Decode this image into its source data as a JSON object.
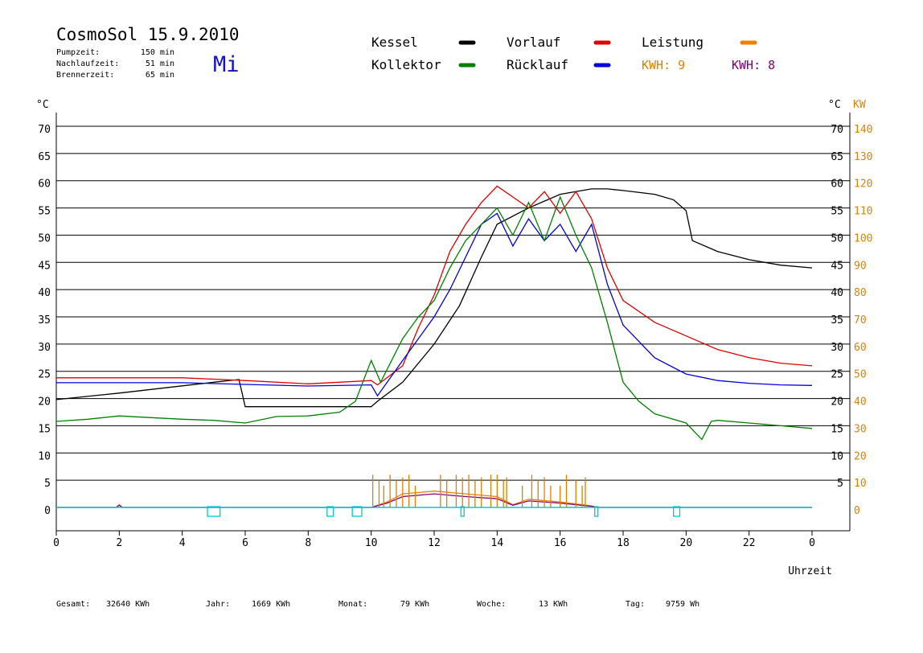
{
  "header": {
    "title": "CosmoSol 15.9.2010",
    "day": "Mi",
    "stats": [
      {
        "label": "Pumpzeit:",
        "value": "150 min"
      },
      {
        "label": "Nachlaufzeit:",
        "value": "51 min"
      },
      {
        "label": "Brennerzeit:",
        "value": "65 min"
      }
    ]
  },
  "legend": [
    {
      "label": "Kessel",
      "color": "#000000"
    },
    {
      "label": "Vorlauf",
      "color": "#e00000"
    },
    {
      "label": "Leistung",
      "color": "#f08000"
    },
    {
      "label": "Kollektor",
      "color": "#008000"
    },
    {
      "label": "Rücklauf",
      "color": "#0000e0"
    }
  ],
  "kwh": [
    {
      "text": "KWH: 9",
      "color": "#e08000"
    },
    {
      "text": "KWH: 8",
      "color": "#800080"
    }
  ],
  "footer": [
    {
      "label": "Gesamt:",
      "value": "32640 KWh"
    },
    {
      "label": "Jahr:",
      "value": "1669 KWh"
    },
    {
      "label": "Monat:",
      "value": "79 KWh"
    },
    {
      "label": "Woche:",
      "value": "13 KWh"
    },
    {
      "label": "Tag:",
      "value": "9759 Wh"
    }
  ],
  "chart_data": {
    "type": "line",
    "xlabel": "Uhrzeit",
    "ylabel_left": "°C",
    "ylabel_right": "°C",
    "ylabel_right2": "KW",
    "xlim": [
      0,
      24
    ],
    "ylim": [
      0,
      70
    ],
    "grid": true,
    "x_ticks": [
      "0",
      "2",
      "4",
      "6",
      "8",
      "10",
      "12",
      "14",
      "16",
      "18",
      "20",
      "22",
      "0"
    ],
    "y_ticks_left": [
      "0",
      "5",
      "10",
      "15",
      "20",
      "25",
      "30",
      "35",
      "40",
      "45",
      "50",
      "55",
      "60",
      "65",
      "70"
    ],
    "y_ticks_right": [
      "5",
      "10",
      "15",
      "20",
      "25",
      "30",
      "35",
      "40",
      "45",
      "50",
      "55",
      "60",
      "65",
      "70"
    ],
    "y_ticks_right_kw": [
      "0",
      "10",
      "20",
      "30",
      "40",
      "50",
      "60",
      "70",
      "80",
      "90",
      "100",
      "110",
      "120",
      "130",
      "140"
    ],
    "series": [
      {
        "name": "Kessel",
        "color": "#000000",
        "points": [
          [
            0,
            19.8
          ],
          [
            2,
            21
          ],
          [
            5,
            23
          ],
          [
            5.8,
            23.5
          ],
          [
            6,
            18.5
          ],
          [
            8,
            18.5
          ],
          [
            10,
            18.5
          ],
          [
            10.2,
            19.5
          ],
          [
            11,
            23
          ],
          [
            12,
            30
          ],
          [
            12.8,
            37
          ],
          [
            13.5,
            46
          ],
          [
            14,
            52
          ],
          [
            15,
            55
          ],
          [
            16,
            57.5
          ],
          [
            17,
            58.5
          ],
          [
            17.5,
            58.5
          ],
          [
            18,
            58.2
          ],
          [
            19,
            57.5
          ],
          [
            19.6,
            56.5
          ],
          [
            20,
            54.5
          ],
          [
            20.2,
            49
          ],
          [
            21,
            47
          ],
          [
            22,
            45.5
          ],
          [
            23,
            44.5
          ],
          [
            24,
            44
          ]
        ]
      },
      {
        "name": "Vorlauf",
        "color": "#e00000",
        "points": [
          [
            0,
            23.8
          ],
          [
            2,
            23.8
          ],
          [
            4,
            23.8
          ],
          [
            6,
            23.3
          ],
          [
            8,
            22.7
          ],
          [
            10,
            23.3
          ],
          [
            10.2,
            22.5
          ],
          [
            11,
            26
          ],
          [
            11.5,
            33
          ],
          [
            12,
            39
          ],
          [
            12.5,
            47
          ],
          [
            13,
            52
          ],
          [
            13.5,
            56
          ],
          [
            14,
            59
          ],
          [
            14.5,
            57
          ],
          [
            15,
            55
          ],
          [
            15.5,
            58
          ],
          [
            16,
            54
          ],
          [
            16.5,
            58
          ],
          [
            17,
            53
          ],
          [
            17.5,
            44
          ],
          [
            18,
            38
          ],
          [
            19,
            34
          ],
          [
            20,
            31.5
          ],
          [
            21,
            29
          ],
          [
            22,
            27.5
          ],
          [
            23,
            26.5
          ],
          [
            24,
            26
          ]
        ]
      },
      {
        "name": "Rücklauf",
        "color": "#0000e0",
        "points": [
          [
            0,
            22.9
          ],
          [
            2,
            22.9
          ],
          [
            4,
            22.9
          ],
          [
            6,
            22.6
          ],
          [
            8,
            22.3
          ],
          [
            10,
            22.5
          ],
          [
            10.2,
            20.5
          ],
          [
            11,
            27
          ],
          [
            11.5,
            31
          ],
          [
            12,
            35
          ],
          [
            12.5,
            40
          ],
          [
            13,
            46
          ],
          [
            13.5,
            52
          ],
          [
            14,
            54
          ],
          [
            14.5,
            48
          ],
          [
            15,
            53
          ],
          [
            15.5,
            49
          ],
          [
            16,
            52
          ],
          [
            16.5,
            47
          ],
          [
            17,
            52
          ],
          [
            17.5,
            41
          ],
          [
            18,
            33.5
          ],
          [
            19,
            27.5
          ],
          [
            20,
            24.5
          ],
          [
            21,
            23.3
          ],
          [
            22,
            22.8
          ],
          [
            23,
            22.5
          ],
          [
            24,
            22.4
          ]
        ]
      },
      {
        "name": "Kollektor",
        "color": "#008000",
        "points": [
          [
            0,
            15.8
          ],
          [
            1,
            16.2
          ],
          [
            2,
            16.8
          ],
          [
            3,
            16.5
          ],
          [
            4,
            16.2
          ],
          [
            5,
            16
          ],
          [
            6,
            15.5
          ],
          [
            7,
            16.7
          ],
          [
            8,
            16.8
          ],
          [
            9,
            17.5
          ],
          [
            9.5,
            19.5
          ],
          [
            10,
            27
          ],
          [
            10.3,
            23
          ],
          [
            11,
            31
          ],
          [
            11.5,
            35
          ],
          [
            12,
            38
          ],
          [
            12.5,
            44
          ],
          [
            13,
            49
          ],
          [
            13.5,
            52
          ],
          [
            14,
            55
          ],
          [
            14.5,
            50
          ],
          [
            15,
            56
          ],
          [
            15.5,
            49
          ],
          [
            16,
            57
          ],
          [
            16.5,
            50
          ],
          [
            17,
            44
          ],
          [
            17.5,
            34
          ],
          [
            18,
            23
          ],
          [
            18.5,
            19.5
          ],
          [
            19,
            17.2
          ],
          [
            20,
            15.5
          ],
          [
            20.5,
            12.5
          ],
          [
            20.8,
            15.8
          ],
          [
            21,
            16
          ],
          [
            22,
            15.5
          ],
          [
            23,
            15
          ],
          [
            24,
            14.5
          ]
        ]
      },
      {
        "name": "Leistung",
        "color": "#f08000",
        "points": [
          [
            0,
            0
          ],
          [
            1.9,
            0
          ],
          [
            2,
            0.5
          ],
          [
            2.1,
            0
          ],
          [
            10,
            0
          ],
          [
            10.5,
            1
          ],
          [
            11,
            2.5
          ],
          [
            12,
            3
          ],
          [
            13,
            2.5
          ],
          [
            14,
            2
          ],
          [
            14.5,
            0.5
          ],
          [
            15,
            1.5
          ],
          [
            16,
            1
          ],
          [
            17,
            0.3
          ],
          [
            17.2,
            0
          ],
          [
            24,
            0
          ]
        ]
      },
      {
        "name": "KWH 8",
        "color": "#800080",
        "points": [
          [
            0,
            0
          ],
          [
            1.9,
            0
          ],
          [
            2,
            0.4
          ],
          [
            2.1,
            0
          ],
          [
            10,
            0
          ],
          [
            10.5,
            0.8
          ],
          [
            11,
            2
          ],
          [
            12,
            2.5
          ],
          [
            13,
            2
          ],
          [
            14,
            1.6
          ],
          [
            14.5,
            0.4
          ],
          [
            15,
            1.2
          ],
          [
            16,
            0.8
          ],
          [
            17,
            0.2
          ],
          [
            17.2,
            0
          ],
          [
            24,
            0
          ]
        ]
      }
    ],
    "pump_spikes": [
      [
        10.05,
        6
      ],
      [
        10.25,
        5
      ],
      [
        10.4,
        4
      ],
      [
        10.6,
        6
      ],
      [
        10.8,
        5
      ],
      [
        11.0,
        5.5
      ],
      [
        11.2,
        6
      ],
      [
        11.4,
        4
      ],
      [
        12.2,
        6
      ],
      [
        12.4,
        5
      ],
      [
        12.7,
        6
      ],
      [
        12.9,
        5.5
      ],
      [
        13.1,
        6
      ],
      [
        13.3,
        5
      ],
      [
        13.5,
        5.5
      ],
      [
        13.8,
        6
      ],
      [
        14.0,
        6
      ],
      [
        14.2,
        5
      ],
      [
        14.3,
        5.5
      ],
      [
        14.8,
        4
      ],
      [
        15.1,
        6
      ],
      [
        15.3,
        5
      ],
      [
        15.5,
        5.5
      ],
      [
        15.7,
        4
      ],
      [
        16.0,
        4
      ],
      [
        16.2,
        6
      ],
      [
        16.5,
        5
      ],
      [
        16.7,
        4
      ],
      [
        16.8,
        5.5
      ]
    ],
    "burner_markers": [
      [
        4.8,
        5.2
      ],
      [
        8.6,
        8.8
      ],
      [
        9.4,
        9.7
      ],
      [
        12.85,
        12.95
      ],
      [
        17.1,
        17.2
      ],
      [
        19.6,
        19.8
      ]
    ],
    "annotations": [],
    "legend_position": "top"
  }
}
